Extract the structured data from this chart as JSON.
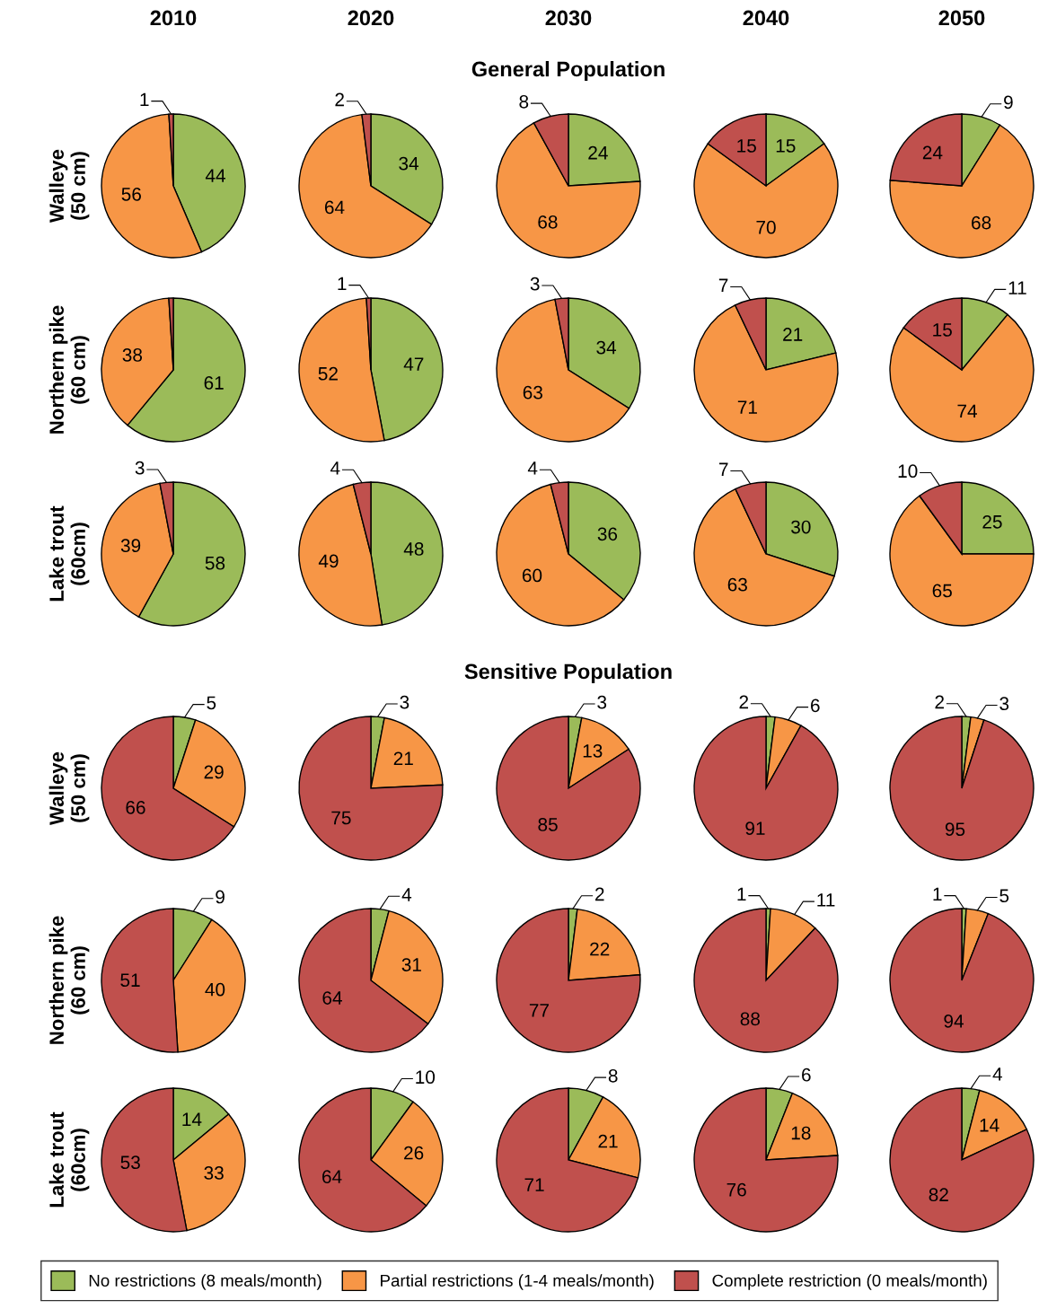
{
  "chart_data": [
    {
      "type": "pie",
      "title": "2010",
      "ylabel": "Walleye\n(50 cm)",
      "legend": "bottom",
      "categories": [
        "No restrictions (8 meals/month)",
        "Partial restrictions (1-4 meals/month)",
        "Complete restriction (0 meals/month)"
      ],
      "values": [
        44,
        56,
        1
      ],
      "colors": [
        "#9bbb59",
        "#f79646",
        "#c0504d"
      ],
      "data_labels": true
    },
    {
      "type": "pie",
      "title": "2020",
      "values": [
        34,
        64,
        2
      ],
      "colors": [
        "#9bbb59",
        "#f79646",
        "#c0504d"
      ],
      "data_labels": true
    },
    {
      "type": "pie",
      "title": "2030",
      "annotations": [
        "General Population"
      ],
      "values": [
        24,
        68,
        8
      ],
      "colors": [
        "#9bbb59",
        "#f79646",
        "#c0504d"
      ],
      "data_labels": true
    },
    {
      "type": "pie",
      "title": "2040",
      "values": [
        15,
        70,
        15
      ],
      "colors": [
        "#9bbb59",
        "#f79646",
        "#c0504d"
      ],
      "data_labels": true
    },
    {
      "type": "pie",
      "title": "2050",
      "values": [
        9,
        68,
        24
      ],
      "colors": [
        "#9bbb59",
        "#f79646",
        "#c0504d"
      ],
      "data_labels": true
    },
    {
      "type": "pie",
      "ylabel": "Northern pike\n(60 cm)",
      "values": [
        61,
        38,
        1
      ],
      "colors": [
        "#9bbb59",
        "#f79646",
        "#c0504d"
      ],
      "value_labels": [
        "61",
        "38",
        null
      ]
    },
    {
      "type": "pie",
      "values": [
        47,
        52,
        1
      ],
      "colors": [
        "#9bbb59",
        "#f79646",
        "#c0504d"
      ],
      "data_labels": true
    },
    {
      "type": "pie",
      "values": [
        34,
        63,
        3
      ],
      "colors": [
        "#9bbb59",
        "#f79646",
        "#c0504d"
      ],
      "data_labels": true
    },
    {
      "type": "pie",
      "values": [
        21,
        71,
        7
      ],
      "colors": [
        "#9bbb59",
        "#f79646",
        "#c0504d"
      ],
      "data_labels": true
    },
    {
      "type": "pie",
      "values": [
        11,
        74,
        15
      ],
      "colors": [
        "#9bbb59",
        "#f79646",
        "#c0504d"
      ],
      "data_labels": true
    },
    {
      "type": "pie",
      "ylabel": "Lake trout\n(60cm)",
      "values": [
        58,
        39,
        3
      ],
      "colors": [
        "#9bbb59",
        "#f79646",
        "#c0504d"
      ],
      "data_labels": true
    },
    {
      "type": "pie",
      "values": [
        48,
        49,
        4
      ],
      "colors": [
        "#9bbb59",
        "#f79646",
        "#c0504d"
      ],
      "data_labels": true
    },
    {
      "type": "pie",
      "values": [
        36,
        60,
        4
      ],
      "colors": [
        "#9bbb59",
        "#f79646",
        "#c0504d"
      ],
      "data_labels": true
    },
    {
      "type": "pie",
      "values": [
        30,
        63,
        7
      ],
      "colors": [
        "#9bbb59",
        "#f79646",
        "#c0504d"
      ],
      "data_labels": true
    },
    {
      "type": "pie",
      "values": [
        25,
        65,
        10
      ],
      "colors": [
        "#9bbb59",
        "#f79646",
        "#c0504d"
      ],
      "data_labels": true
    },
    {
      "type": "pie",
      "ylabel": "Walleye\n(50 cm)",
      "values": [
        5,
        29,
        66
      ],
      "colors": [
        "#9bbb59",
        "#f79646",
        "#c0504d"
      ],
      "data_labels": true
    },
    {
      "type": "pie",
      "values": [
        3,
        21,
        75
      ],
      "colors": [
        "#9bbb59",
        "#f79646",
        "#c0504d"
      ],
      "data_labels": true
    },
    {
      "type": "pie",
      "annotations": [
        "Sensitive Population"
      ],
      "values": [
        3,
        13,
        85
      ],
      "colors": [
        "#9bbb59",
        "#f79646",
        "#c0504d"
      ],
      "data_labels": true
    },
    {
      "type": "pie",
      "values": [
        2,
        6,
        91
      ],
      "colors": [
        "#9bbb59",
        "#f79646",
        "#c0504d"
      ],
      "data_labels": true
    },
    {
      "type": "pie",
      "values": [
        2,
        3,
        95
      ],
      "colors": [
        "#9bbb59",
        "#f79646",
        "#c0504d"
      ],
      "data_labels": true
    },
    {
      "type": "pie",
      "ylabel": "Northern pike\n(60 cm)",
      "values": [
        9,
        40,
        51
      ],
      "colors": [
        "#9bbb59",
        "#f79646",
        "#c0504d"
      ],
      "data_labels": true
    },
    {
      "type": "pie",
      "values": [
        4,
        31,
        64
      ],
      "colors": [
        "#9bbb59",
        "#f79646",
        "#c0504d"
      ],
      "data_labels": true
    },
    {
      "type": "pie",
      "values": [
        2,
        22,
        77
      ],
      "colors": [
        "#9bbb59",
        "#f79646",
        "#c0504d"
      ],
      "data_labels": true
    },
    {
      "type": "pie",
      "values": [
        1,
        11,
        88
      ],
      "colors": [
        "#9bbb59",
        "#f79646",
        "#c0504d"
      ],
      "data_labels": true
    },
    {
      "type": "pie",
      "values": [
        1,
        5,
        94
      ],
      "colors": [
        "#9bbb59",
        "#f79646",
        "#c0504d"
      ],
      "data_labels": true
    },
    {
      "type": "pie",
      "ylabel": "Lake trout\n(60cm)",
      "values": [
        14,
        33,
        53
      ],
      "colors": [
        "#9bbb59",
        "#f79646",
        "#c0504d"
      ],
      "data_labels": true
    },
    {
      "type": "pie",
      "values": [
        10,
        26,
        64
      ],
      "colors": [
        "#9bbb59",
        "#f79646",
        "#c0504d"
      ],
      "data_labels": true
    },
    {
      "type": "pie",
      "values": [
        8,
        21,
        71
      ],
      "colors": [
        "#9bbb59",
        "#f79646",
        "#c0504d"
      ],
      "data_labels": true
    },
    {
      "type": "pie",
      "values": [
        6,
        18,
        76
      ],
      "colors": [
        "#9bbb59",
        "#f79646",
        "#c0504d"
      ],
      "data_labels": true
    },
    {
      "type": "pie",
      "values": [
        4,
        14,
        82
      ],
      "colors": [
        "#9bbb59",
        "#f79646",
        "#c0504d"
      ],
      "data_labels": true
    }
  ]
}
